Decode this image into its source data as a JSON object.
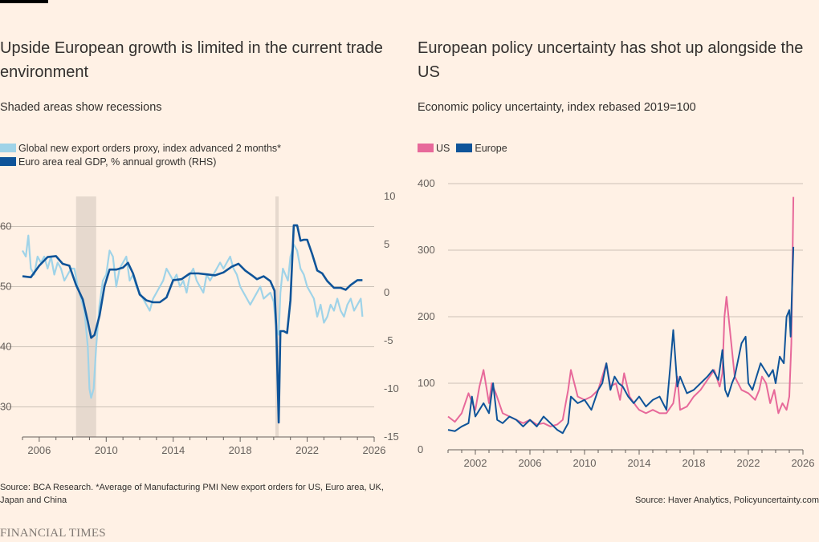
{
  "brand": "FINANCIAL TIMES",
  "colors": {
    "background": "#FFF1E5",
    "light_blue": "#9FD3E8",
    "dark_blue": "#0F5499",
    "pink": "#E7699A",
    "recession": "#E6D9CE",
    "grid": "#CCC1B7"
  },
  "left": {
    "title": "Upside European growth is limited in the current trade environment",
    "subtitle": "Shaded areas show recessions",
    "legend": [
      {
        "label": "Global new export orders proxy, index advanced 2 months*",
        "color": "#9FD3E8"
      },
      {
        "label": "Euro area real GDP, % annual growth (RHS)",
        "color": "#0F5499"
      }
    ],
    "source": "Source: BCA Research. *Average of Manufacturing PMI New export orders for US, Euro area, UK, Japan and China"
  },
  "right": {
    "title": "European policy uncertainty has shot up alongside the US",
    "subtitle": "Economic policy uncertainty, index rebased 2019=100",
    "legend": [
      {
        "label": "US",
        "color": "#E7699A"
      },
      {
        "label": "Europe",
        "color": "#0F5499"
      }
    ],
    "source": "Source: Haver Analytics, Policyuncertainty.com"
  },
  "chart_data": [
    {
      "type": "line",
      "title": "Upside European growth is limited in the current trade environment",
      "subtitle": "Shaded areas show recessions",
      "xlim": [
        2005,
        2026
      ],
      "x_ticks": [
        2006,
        2010,
        2014,
        2018,
        2022,
        2026
      ],
      "ylim_left": [
        25,
        65
      ],
      "y_ticks_left": [
        30,
        40,
        50,
        60
      ],
      "ylim_right": [
        -15,
        10
      ],
      "y_ticks_right": [
        -15,
        -10,
        -5,
        0,
        5,
        10
      ],
      "grid": true,
      "recessions": [
        [
          2008.2,
          2009.4
        ],
        [
          2020.1,
          2020.3
        ]
      ],
      "series": [
        {
          "name": "Global new export orders proxy, index advanced 2 months*",
          "axis": "left",
          "x": [
            2005.0,
            2005.2,
            2005.35,
            2005.5,
            2005.7,
            2005.9,
            2006.1,
            2006.3,
            2006.5,
            2006.7,
            2006.9,
            2007.1,
            2007.3,
            2007.5,
            2007.7,
            2007.9,
            2008.1,
            2008.3,
            2008.5,
            2008.7,
            2008.9,
            2009.0,
            2009.1,
            2009.25,
            2009.4,
            2009.6,
            2009.8,
            2010.0,
            2010.2,
            2010.4,
            2010.6,
            2010.8,
            2011.0,
            2011.2,
            2011.4,
            2011.6,
            2011.8,
            2012.0,
            2012.2,
            2012.4,
            2012.6,
            2012.8,
            2013.0,
            2013.2,
            2013.4,
            2013.6,
            2013.8,
            2014.0,
            2014.2,
            2014.4,
            2014.6,
            2014.8,
            2015.0,
            2015.2,
            2015.4,
            2015.6,
            2015.8,
            2016.0,
            2016.2,
            2016.4,
            2016.6,
            2016.8,
            2017.0,
            2017.2,
            2017.4,
            2017.6,
            2017.8,
            2018.0,
            2018.2,
            2018.4,
            2018.6,
            2018.8,
            2019.0,
            2019.2,
            2019.4,
            2019.6,
            2019.8,
            2020.0,
            2020.15,
            2020.3,
            2020.4,
            2020.55,
            2020.7,
            2020.85,
            2021.0,
            2021.2,
            2021.4,
            2021.6,
            2021.8,
            2022.0,
            2022.2,
            2022.4,
            2022.6,
            2022.8,
            2023.0,
            2023.2,
            2023.4,
            2023.6,
            2023.8,
            2024.0,
            2024.2,
            2024.4,
            2024.6,
            2024.8,
            2025.0,
            2025.2,
            2025.3
          ],
          "values": [
            56,
            55,
            58.5,
            53,
            52,
            55,
            54,
            55,
            53,
            55,
            52,
            54,
            53,
            51,
            52,
            53,
            53,
            50,
            48,
            46,
            40,
            33,
            31.5,
            33,
            40,
            47,
            51,
            52,
            56,
            55,
            50,
            53,
            54,
            55,
            51,
            52,
            50,
            49,
            48,
            47,
            46,
            48,
            49,
            50,
            51,
            53,
            52,
            51,
            52,
            50,
            51,
            49,
            52,
            53,
            51,
            50,
            49,
            52,
            51,
            52,
            53,
            54,
            53,
            54,
            55,
            53,
            52,
            50,
            49,
            48,
            47,
            48,
            49,
            50,
            48,
            48.5,
            49,
            47.5,
            43,
            42,
            49,
            53,
            52,
            51,
            55,
            57,
            56,
            53,
            52,
            50,
            49,
            48,
            45,
            47,
            44,
            45,
            47,
            46,
            48,
            46,
            45,
            47,
            48,
            46,
            47,
            48,
            45
          ]
        },
        {
          "name": "Euro area real GDP, % annual growth (RHS)",
          "axis": "right",
          "x": [
            2005.0,
            2005.5,
            2006.0,
            2006.5,
            2007.0,
            2007.4,
            2007.8,
            2008.2,
            2008.6,
            2008.9,
            2009.1,
            2009.3,
            2009.6,
            2009.9,
            2010.2,
            2010.6,
            2011.0,
            2011.3,
            2011.6,
            2012.0,
            2012.4,
            2012.8,
            2013.2,
            2013.6,
            2014.0,
            2014.5,
            2015.0,
            2015.5,
            2016.0,
            2016.5,
            2017.0,
            2017.5,
            2017.9,
            2018.3,
            2018.7,
            2019.0,
            2019.4,
            2019.8,
            2020.05,
            2020.15,
            2020.3,
            2020.4,
            2020.6,
            2020.8,
            2021.0,
            2021.2,
            2021.4,
            2021.6,
            2021.8,
            2022.0,
            2022.3,
            2022.6,
            2022.9,
            2023.2,
            2023.6,
            2024.0,
            2024.3,
            2024.6,
            2025.0,
            2025.3
          ],
          "values": [
            1.7,
            1.6,
            2.8,
            3.7,
            3.8,
            3.0,
            2.8,
            0.8,
            -0.7,
            -3.0,
            -4.7,
            -4.4,
            -2.4,
            0.7,
            2.4,
            2.4,
            2.6,
            3.1,
            2.0,
            -0.2,
            -0.8,
            -1.0,
            -1.0,
            -0.5,
            1.3,
            1.4,
            2.0,
            2.0,
            1.9,
            1.8,
            2.1,
            2.7,
            3.0,
            2.3,
            1.8,
            1.4,
            1.7,
            1.2,
            0.2,
            -3.5,
            -13.5,
            -4.0,
            -4.0,
            -4.2,
            -0.8,
            7.0,
            7.0,
            5.4,
            5.5,
            5.5,
            4.0,
            2.3,
            2.0,
            1.2,
            0.5,
            0.5,
            0.3,
            0.8,
            1.3,
            1.3
          ]
        }
      ]
    },
    {
      "type": "line",
      "title": "European policy uncertainty has shot up alongside the US",
      "subtitle": "Economic policy uncertainty, index rebased 2019=100",
      "xlim": [
        2000,
        2026
      ],
      "x_ticks": [
        2002,
        2006,
        2010,
        2014,
        2018,
        2022,
        2026
      ],
      "ylim": [
        0,
        400
      ],
      "y_ticks": [
        0,
        100,
        200,
        300,
        400
      ],
      "grid": true,
      "series": [
        {
          "name": "US",
          "x": [
            2000.0,
            2000.5,
            2001.0,
            2001.5,
            2001.75,
            2002.0,
            2002.3,
            2002.6,
            2003.0,
            2003.2,
            2003.5,
            2004.0,
            2004.5,
            2005.0,
            2005.5,
            2006.0,
            2006.5,
            2007.0,
            2007.5,
            2008.0,
            2008.4,
            2008.8,
            2009.0,
            2009.5,
            2010.0,
            2010.5,
            2011.0,
            2011.3,
            2011.6,
            2011.9,
            2012.3,
            2012.6,
            2012.9,
            2013.3,
            2013.8,
            2014.0,
            2014.5,
            2015.0,
            2015.5,
            2016.0,
            2016.5,
            2016.8,
            2017.0,
            2017.5,
            2018.0,
            2018.5,
            2019.0,
            2019.5,
            2019.9,
            2020.1,
            2020.25,
            2020.4,
            2020.6,
            2020.8,
            2021.0,
            2021.5,
            2022.0,
            2022.5,
            2022.8,
            2023.0,
            2023.3,
            2023.6,
            2023.9,
            2024.2,
            2024.5,
            2024.8,
            2025.0,
            2025.15,
            2025.3
          ],
          "values": [
            50,
            42,
            55,
            85,
            72,
            60,
            95,
            120,
            70,
            100,
            85,
            55,
            50,
            45,
            40,
            45,
            38,
            40,
            35,
            38,
            45,
            90,
            120,
            80,
            75,
            80,
            90,
            110,
            130,
            95,
            100,
            75,
            115,
            80,
            65,
            60,
            55,
            60,
            55,
            55,
            70,
            110,
            60,
            65,
            80,
            90,
            105,
            120,
            95,
            115,
            200,
            230,
            190,
            150,
            110,
            90,
            85,
            75,
            90,
            110,
            100,
            70,
            90,
            55,
            70,
            60,
            80,
            160,
            380
          ]
        },
        {
          "name": "Europe",
          "x": [
            2000.0,
            2000.5,
            2001.0,
            2001.5,
            2001.75,
            2002.0,
            2002.3,
            2002.6,
            2003.0,
            2003.3,
            2003.6,
            2004.0,
            2004.5,
            2005.0,
            2005.5,
            2006.0,
            2006.5,
            2007.0,
            2007.5,
            2008.0,
            2008.4,
            2008.8,
            2009.0,
            2009.5,
            2010.0,
            2010.5,
            2011.0,
            2011.3,
            2011.6,
            2011.9,
            2012.2,
            2012.5,
            2012.8,
            2013.2,
            2013.6,
            2014.0,
            2014.5,
            2015.0,
            2015.5,
            2016.0,
            2016.3,
            2016.5,
            2016.8,
            2017.0,
            2017.5,
            2018.0,
            2018.5,
            2019.0,
            2019.4,
            2019.8,
            2020.1,
            2020.3,
            2020.5,
            2020.8,
            2021.0,
            2021.5,
            2021.8,
            2022.0,
            2022.3,
            2022.6,
            2022.9,
            2023.2,
            2023.5,
            2023.8,
            2024.0,
            2024.3,
            2024.6,
            2024.8,
            2025.0,
            2025.1,
            2025.2,
            2025.3
          ],
          "values": [
            30,
            28,
            35,
            40,
            80,
            50,
            60,
            70,
            55,
            100,
            45,
            40,
            50,
            45,
            35,
            45,
            35,
            50,
            40,
            30,
            25,
            40,
            80,
            70,
            75,
            60,
            90,
            100,
            130,
            90,
            110,
            100,
            95,
            80,
            70,
            80,
            65,
            75,
            80,
            60,
            130,
            180,
            95,
            110,
            85,
            90,
            100,
            110,
            120,
            105,
            150,
            90,
            80,
            100,
            110,
            160,
            170,
            100,
            90,
            110,
            130,
            120,
            110,
            120,
            100,
            140,
            130,
            200,
            210,
            170,
            240,
            305
          ]
        }
      ]
    }
  ]
}
